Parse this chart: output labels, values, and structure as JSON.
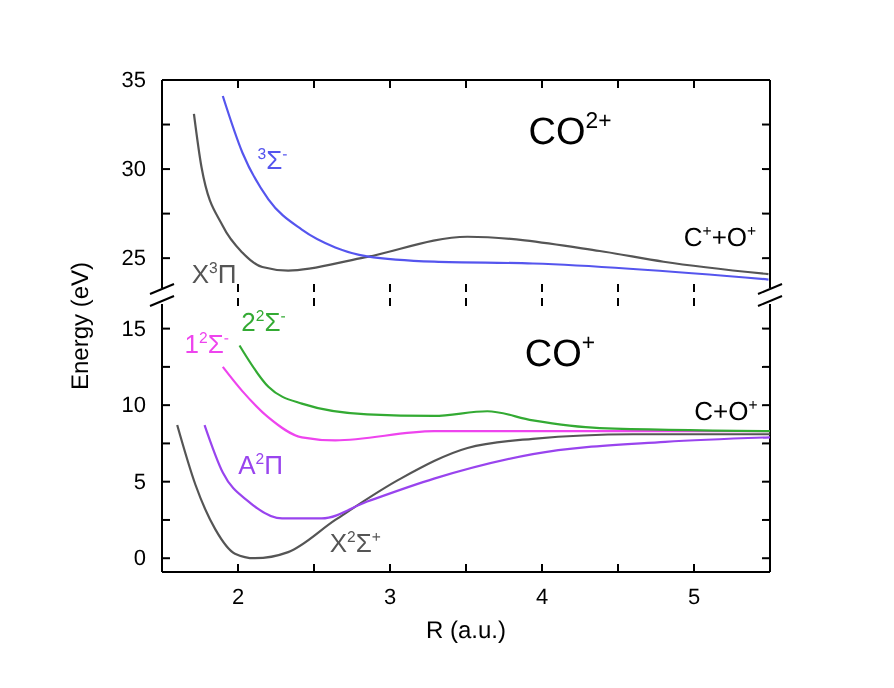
{
  "chart_data": [
    {
      "type": "line",
      "ylabel": "Energy (eV)",
      "xlim": [
        1.5,
        5.5
      ],
      "xticks": [
        2,
        {
          "value": 2.5,
          "label": null
        },
        3,
        {
          "value": 3.5,
          "label": null
        },
        4,
        {
          "value": 4.5,
          "label": null
        },
        5
      ],
      "ylim": [
        23.1,
        35
      ],
      "yticks": [
        25,
        {
          "value": 27.5,
          "label": null
        },
        30,
        {
          "value": 32.5,
          "label": null
        },
        35
      ],
      "tick_labels": "y",
      "grid": false,
      "legend": false,
      "marker": "none",
      "line_style": "solid",
      "series": [
        {
          "name": "X$^{3}$Π",
          "color": "#555555",
          "x": [
            1.71,
            1.76,
            1.9,
            2.03,
            2.16,
            2.33,
            2.81,
            3.51,
            4.38,
            4.8,
            5.49
          ],
          "values": [
            33.1,
            30.1,
            26.8,
            25.3,
            24.5,
            24.3,
            25.0,
            26.2,
            25.4,
            24.8,
            24.1
          ]
        },
        {
          "name": "$^{3}$Σ$^{-}$",
          "color": "#5555ee",
          "x": [
            1.9,
            2.03,
            2.2,
            2.42,
            2.64,
            2.85,
            3.29,
            3.94,
            5.49
          ],
          "values": [
            34.1,
            30.9,
            28.3,
            26.6,
            25.6,
            25.1,
            24.8,
            24.7,
            23.8
          ]
        }
      ],
      "annotations": [
        "CO$^{2+}$",
        "C$^{+}$+O$^{+}$"
      ]
    },
    {
      "type": "line",
      "xlabel": "R (a.u.)",
      "xlim": [
        1.5,
        5.5
      ],
      "xticks": [
        2,
        {
          "value": 2.5,
          "label": null
        },
        3,
        {
          "value": 3.5,
          "label": null
        },
        4,
        {
          "value": 4.5,
          "label": null
        },
        5
      ],
      "ylim": [
        -0.9,
        17
      ],
      "yticks": [
        0,
        {
          "value": 2.5,
          "label": null
        },
        5,
        {
          "value": 7.5,
          "label": null
        },
        10,
        {
          "value": 12.5,
          "label": null
        },
        15
      ],
      "grid": false,
      "legend": false,
      "marker": "none",
      "line_style": "solid",
      "series": [
        {
          "name": "X$^{2}$Σ$^{+}$",
          "color": "#555555",
          "x": [
            1.6,
            1.72,
            1.85,
            1.98,
            2.11,
            2.33,
            2.64,
            3.07,
            3.51,
            3.94,
            4.6,
            5.5
          ],
          "values": [
            8.7,
            4.8,
            1.9,
            0.3,
            0.0,
            0.4,
            2.5,
            5.2,
            7.2,
            7.8,
            8.1,
            8.1
          ]
        },
        {
          "name": "A$^{2}$Π",
          "color": "#9944ee",
          "x": [
            1.78,
            1.9,
            2.07,
            2.29,
            2.55,
            2.85,
            3.29,
            3.94,
            4.81,
            5.5
          ],
          "values": [
            8.7,
            5.6,
            3.7,
            2.6,
            2.6,
            3.7,
            5.2,
            6.8,
            7.6,
            7.9
          ]
        },
        {
          "name": "1$^{2}$Σ$^{-}$",
          "color": "#ee44ee",
          "x": [
            1.9,
            2.03,
            2.2,
            2.42,
            2.64,
            3.29,
            3.94,
            5.5
          ],
          "values": [
            12.5,
            10.9,
            9.2,
            7.9,
            7.7,
            8.3,
            8.3,
            8.3
          ]
        },
        {
          "name": "2$^{2}$Σ$^{-}$",
          "color": "#33aa33",
          "x": [
            2.01,
            2.2,
            2.42,
            2.85,
            3.29,
            3.64,
            3.94,
            4.38,
            5.5
          ],
          "values": [
            13.9,
            11.2,
            10.1,
            9.4,
            9.3,
            9.6,
            9.0,
            8.5,
            8.3
          ]
        }
      ],
      "annotations": [
        "CO$^{+}$",
        "C+O$^{+}$"
      ]
    }
  ]
}
